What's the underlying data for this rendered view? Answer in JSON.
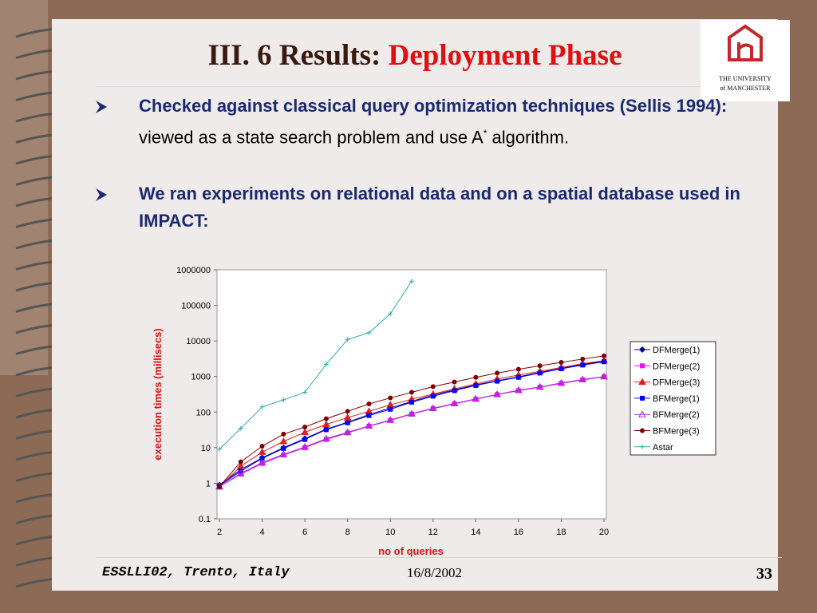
{
  "title": {
    "plain": "III. 6 Results:",
    "accent": "Deployment Phase"
  },
  "logo": {
    "line1": "THE UNIVERSITY",
    "line2": "of MANCHESTER"
  },
  "bullets": [
    {
      "bold": "Checked against classical query optimization techniques (Sellis 1994):",
      "text": " viewed as a state search problem and use A",
      "sup": "*",
      "tail": " algorithm."
    },
    {
      "bold": "We ran experiments on relational data and on a spatial database used in IMPACT:"
    }
  ],
  "footer": {
    "left": "ESSLLI02, Trento, Italy",
    "date": "16/8/2002",
    "page": "33"
  },
  "chart_data": {
    "type": "line",
    "xlabel": "no of queries",
    "ylabel": "execution times (millisecs)",
    "x": [
      2,
      3,
      4,
      5,
      6,
      7,
      8,
      9,
      10,
      11,
      12,
      13,
      14,
      15,
      16,
      17,
      18,
      19,
      20
    ],
    "xlim": [
      2,
      20
    ],
    "xticks": [
      2,
      4,
      6,
      8,
      10,
      12,
      14,
      16,
      18,
      20
    ],
    "ylim": [
      0.1,
      1000000
    ],
    "yticks": [
      0.1,
      1,
      10,
      100,
      1000,
      10000,
      100000,
      1000000
    ],
    "ylog": true,
    "series": [
      {
        "name": "DFMerge(1)",
        "color": "#000080",
        "marker": "diamond",
        "values": [
          0.9,
          2.4,
          5.2,
          10,
          18,
          33,
          52,
          85,
          130,
          200,
          300,
          420,
          580,
          760,
          980,
          1300,
          1700,
          2200,
          2700
        ]
      },
      {
        "name": "DFMerge(2)",
        "color": "#ff00ff",
        "marker": "square",
        "values": [
          0.8,
          1.8,
          3.6,
          6.2,
          10,
          17,
          26,
          40,
          58,
          88,
          125,
          170,
          230,
          310,
          400,
          500,
          640,
          800,
          980
        ]
      },
      {
        "name": "DFMerge(3)",
        "color": "#e02020",
        "marker": "triangle",
        "values": [
          0.8,
          3,
          7.5,
          15,
          27,
          45,
          70,
          105,
          160,
          230,
          320,
          450,
          620,
          850,
          1100,
          1400,
          1800,
          2300,
          2800
        ]
      },
      {
        "name": "BFMerge(1)",
        "color": "#0000ff",
        "marker": "square",
        "values": [
          0.85,
          2.2,
          5,
          9.5,
          17,
          32,
          50,
          80,
          120,
          190,
          280,
          400,
          560,
          740,
          950,
          1250,
          1650,
          2100,
          2600
        ]
      },
      {
        "name": "BFMerge(2)",
        "color": "#9933cc",
        "marker": "triangle-open",
        "values": [
          0.8,
          1.9,
          3.8,
          6.5,
          10.5,
          18,
          27,
          41,
          60,
          90,
          128,
          175,
          235,
          315,
          410,
          510,
          660,
          820,
          1000
        ]
      },
      {
        "name": "BFMerge(3)",
        "color": "#800000",
        "marker": "circle",
        "values": [
          0.8,
          4,
          11,
          24,
          38,
          65,
          105,
          170,
          250,
          360,
          520,
          700,
          950,
          1250,
          1600,
          2000,
          2500,
          3100,
          3800
        ]
      },
      {
        "name": "Astar",
        "color": "#33aaaa",
        "marker": "plus",
        "values": [
          9,
          35,
          140,
          220,
          360,
          2200,
          11000,
          17000,
          58000,
          480000,
          null,
          null,
          null,
          null,
          null,
          null,
          null,
          null,
          null
        ]
      }
    ]
  }
}
